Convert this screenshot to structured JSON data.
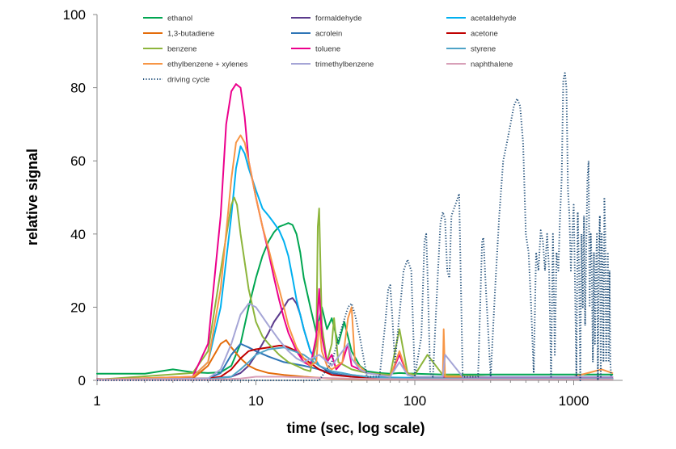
{
  "chart_data": {
    "type": "line",
    "title": "",
    "xlabel": "time (sec, log scale)",
    "ylabel": "relative signal",
    "xscale": "log",
    "xlim": [
      1,
      1800
    ],
    "ylim": [
      0,
      100
    ],
    "xticks": [
      1,
      10,
      100,
      1000
    ],
    "xtick_labels": [
      "1",
      "10",
      "100",
      "1000"
    ],
    "yticks": [
      0,
      20,
      40,
      60,
      80,
      100
    ],
    "ytick_labels": [
      "0",
      "20",
      "40",
      "60",
      "80",
      "100"
    ],
    "grid": false,
    "legend_position": "top",
    "series": [
      {
        "name": "ethanol",
        "color": "#00a651",
        "dash": "solid",
        "x": [
          1,
          2,
          3,
          4,
          5,
          6,
          7,
          8,
          9,
          10,
          11,
          12,
          13,
          14,
          15,
          16,
          17,
          18,
          19,
          20,
          22,
          24,
          26,
          28,
          30,
          33,
          36,
          40,
          45,
          50,
          60,
          70,
          80,
          100,
          150,
          200,
          300,
          500,
          1000,
          1500,
          1750
        ],
        "y": [
          1.8,
          1.8,
          3.0,
          2.2,
          2.0,
          2.2,
          4,
          10,
          20,
          28,
          34,
          38,
          40.5,
          42,
          42.5,
          43,
          42.5,
          40,
          35,
          28,
          20,
          13,
          20,
          14,
          17,
          10,
          16,
          8,
          4,
          2.5,
          2,
          1.8,
          2,
          1.8,
          1.6,
          1.6,
          1.6,
          1.6,
          1.6,
          1.6,
          1.6
        ]
      },
      {
        "name": "formaldehyde",
        "color": "#5b3a8c",
        "dash": "solid",
        "x": [
          1,
          5,
          7,
          8,
          9,
          10,
          11,
          12,
          13,
          14,
          15,
          16,
          17,
          18,
          19,
          20,
          22,
          25,
          30,
          40,
          60,
          100,
          300,
          1000,
          1750
        ],
        "y": [
          0.3,
          0.5,
          1,
          2,
          4,
          7,
          10,
          13,
          16,
          18,
          20,
          22,
          22.5,
          21,
          18,
          14,
          8,
          4,
          2,
          1,
          0.6,
          0.5,
          0.5,
          0.5,
          0.5
        ]
      },
      {
        "name": "acetaldehyde",
        "color": "#00b0f0",
        "dash": "solid",
        "x": [
          1,
          3,
          4,
          5,
          6,
          7,
          7.5,
          8,
          8.5,
          9,
          10,
          11,
          12,
          13,
          14,
          15,
          16,
          17,
          18,
          20,
          22,
          25,
          28,
          30,
          35,
          40,
          50,
          70,
          100,
          200,
          500,
          1000,
          1750
        ],
        "y": [
          0.2,
          0.3,
          1,
          5,
          20,
          45,
          58,
          64,
          62,
          58,
          52,
          47,
          45,
          43,
          41,
          38,
          34,
          28,
          22,
          14,
          8,
          4,
          3,
          2.5,
          2,
          1.5,
          1,
          0.8,
          0.7,
          0.6,
          0.6,
          0.6,
          0.6
        ]
      },
      {
        "name": "1,3-butadiene",
        "color": "#e46c0a",
        "dash": "solid",
        "x": [
          1,
          4,
          5,
          6,
          6.5,
          7,
          8,
          9,
          10,
          12,
          15,
          20,
          30,
          50,
          100,
          1000,
          1750
        ],
        "y": [
          0.2,
          0.5,
          4,
          10,
          11,
          9,
          6,
          4,
          3,
          2,
          1.5,
          1,
          0.5,
          0.3,
          0.3,
          0.3,
          0.3
        ]
      },
      {
        "name": "acrolein",
        "color": "#2e75b6",
        "dash": "solid",
        "x": [
          1,
          5,
          6,
          7,
          8,
          8.5,
          9,
          10,
          12,
          15,
          20,
          25,
          30,
          40,
          60,
          100,
          1000,
          1750
        ],
        "y": [
          0.2,
          0.5,
          2,
          7,
          10,
          9.5,
          9,
          8,
          6.5,
          5,
          4,
          3,
          2,
          1,
          0.5,
          0.3,
          0.3,
          0.3
        ]
      },
      {
        "name": "acetone",
        "color": "#c00000",
        "dash": "solid",
        "x": [
          1,
          5,
          6,
          7,
          8,
          9,
          10,
          12,
          14,
          15,
          16,
          18,
          20,
          25,
          30,
          40,
          60,
          100,
          1000,
          1750
        ],
        "y": [
          0.3,
          0.5,
          1,
          3,
          6,
          8,
          8.5,
          9,
          9.5,
          9.5,
          9,
          8,
          6,
          3,
          1.5,
          1,
          0.6,
          0.5,
          0.5,
          0.5
        ]
      },
      {
        "name": "benzene",
        "color": "#8db53c",
        "dash": "solid",
        "x": [
          1,
          4,
          5,
          6,
          7,
          7.3,
          7.6,
          8,
          9,
          10,
          11,
          12,
          14,
          16,
          18,
          20,
          22,
          24,
          24.5,
          25,
          26,
          28,
          30,
          31,
          33,
          40,
          50,
          70,
          80,
          90,
          100,
          120,
          150,
          300,
          1000,
          1750
        ],
        "y": [
          0.2,
          2,
          8,
          30,
          48,
          50,
          48,
          40,
          25,
          16,
          12,
          10,
          7,
          5,
          4,
          3,
          2.5,
          10,
          42,
          47,
          15,
          5,
          10,
          17,
          5,
          3,
          2,
          1.5,
          14,
          2,
          1.5,
          7,
          1.5,
          1,
          1,
          1
        ]
      },
      {
        "name": "toluene",
        "color": "#ec008c",
        "dash": "solid",
        "x": [
          1,
          4,
          5,
          6,
          6.5,
          7,
          7.5,
          8,
          8.5,
          9,
          10,
          11,
          12,
          13,
          14,
          15,
          16,
          18,
          20,
          22,
          24,
          25,
          26,
          28,
          30,
          32,
          35,
          38,
          40,
          50,
          70,
          80,
          90,
          100,
          150,
          300,
          1000,
          1750
        ],
        "y": [
          0.2,
          1,
          10,
          45,
          70,
          79,
          81,
          80,
          72,
          60,
          50,
          42,
          35,
          28,
          22,
          17,
          13,
          8,
          5,
          4,
          12,
          25,
          12,
          5,
          7,
          3,
          5,
          10,
          4,
          2,
          1,
          7,
          1.5,
          1,
          1,
          0.8,
          0.8,
          0.8
        ]
      },
      {
        "name": "styrene",
        "color": "#4fa3c7",
        "dash": "solid",
        "x": [
          1,
          5,
          7,
          8,
          9,
          10,
          12,
          15,
          20,
          25,
          30,
          40,
          50,
          70,
          100,
          1000,
          1750
        ],
        "y": [
          0.2,
          0.3,
          1,
          3,
          5,
          7,
          8.5,
          9,
          7,
          4,
          2.5,
          1.5,
          1,
          0.6,
          0.5,
          0.5,
          0.5
        ]
      },
      {
        "name": "ethylbenzene + xylenes",
        "color": "#f79646",
        "dash": "solid",
        "x": [
          1,
          4,
          5,
          6,
          7,
          7.5,
          8,
          8.5,
          9,
          10,
          11,
          12,
          13,
          14,
          15,
          16,
          18,
          20,
          22,
          24,
          25,
          26,
          28,
          30,
          35,
          38,
          40,
          42,
          50,
          70,
          80,
          90,
          100,
          150,
          152,
          155,
          200,
          1000,
          1500,
          1750
        ],
        "y": [
          0.2,
          1,
          5,
          25,
          55,
          65,
          67,
          65,
          60,
          50,
          42,
          36,
          30,
          25,
          20,
          15,
          9,
          6,
          4,
          5,
          16,
          8,
          4,
          3,
          5,
          17,
          20,
          5,
          2,
          1,
          8,
          1.5,
          1,
          1,
          14,
          1,
          1,
          1,
          3,
          2
        ]
      },
      {
        "name": "trimethylbenzene",
        "color": "#a5a5d6",
        "dash": "solid",
        "x": [
          1,
          5,
          6,
          7,
          8,
          9,
          10,
          12,
          14,
          16,
          18,
          20,
          25,
          30,
          38,
          40,
          45,
          50,
          70,
          80,
          90,
          100,
          150,
          155,
          200,
          1000,
          1750
        ],
        "y": [
          0.2,
          0.5,
          3,
          10,
          18,
          21,
          20,
          15,
          11,
          8,
          6,
          5,
          7,
          4,
          10,
          6,
          3,
          2,
          1,
          5,
          1.5,
          1,
          1,
          7,
          1,
          1,
          1
        ]
      },
      {
        "name": "naphthalene",
        "color": "#d8a0b8",
        "dash": "solid",
        "x": [
          1,
          5,
          8,
          10,
          15,
          20,
          30,
          50,
          100,
          1000,
          1750
        ],
        "y": [
          0.1,
          0.2,
          0.5,
          1,
          1,
          0.8,
          0.6,
          0.4,
          0.3,
          0.3,
          0.3
        ]
      },
      {
        "name": "driving cycle",
        "color": "#1f4e79",
        "dash": "dotted",
        "x": [
          1,
          10,
          20,
          25,
          30,
          35,
          38,
          40,
          42,
          45,
          50,
          60,
          65,
          68,
          70,
          72,
          75,
          80,
          85,
          90,
          95,
          100,
          110,
          115,
          118,
          120,
          125,
          130,
          140,
          145,
          150,
          155,
          160,
          165,
          170,
          180,
          190,
          200,
          210,
          230,
          250,
          265,
          270,
          280,
          300,
          320,
          340,
          360,
          380,
          400,
          420,
          440,
          460,
          480,
          500,
          520,
          540,
          560,
          580,
          600,
          620,
          640,
          660,
          680,
          700,
          720,
          740,
          760,
          780,
          800,
          820,
          840,
          860,
          880,
          900,
          920,
          940,
          960,
          980,
          1000,
          1020,
          1040,
          1060,
          1080,
          1100,
          1120,
          1140,
          1160,
          1180,
          1200,
          1220,
          1240,
          1260,
          1280,
          1300,
          1320,
          1340,
          1360,
          1380,
          1400,
          1420,
          1440,
          1460,
          1480,
          1500,
          1520,
          1540,
          1560,
          1580,
          1600,
          1620,
          1640,
          1660,
          1680,
          1700,
          1720
        ],
        "y": [
          0,
          0,
          0,
          0,
          5,
          15,
          20,
          21,
          18,
          12,
          1,
          1,
          15,
          25,
          26,
          18,
          5,
          18,
          30,
          33,
          30,
          1,
          12,
          38,
          40,
          30,
          2,
          1,
          30,
          43,
          46,
          44,
          30,
          28,
          45,
          48,
          51,
          1,
          1,
          1,
          1,
          38,
          39,
          25,
          1,
          25,
          45,
          60,
          65,
          70,
          75,
          77,
          75,
          65,
          40,
          35,
          20,
          2,
          35,
          30,
          41,
          38,
          30,
          40,
          30,
          1,
          40,
          7,
          35,
          30,
          45,
          55,
          82,
          84,
          80,
          52,
          45,
          30,
          40,
          48,
          25,
          1,
          46,
          30,
          0,
          40,
          20,
          45,
          15,
          38,
          55,
          60,
          20,
          40,
          30,
          5,
          35,
          10,
          30,
          40,
          0,
          35,
          45,
          1,
          40,
          30,
          5,
          50,
          40,
          5,
          20,
          35,
          5,
          30,
          5,
          1
        ]
      }
    ]
  }
}
